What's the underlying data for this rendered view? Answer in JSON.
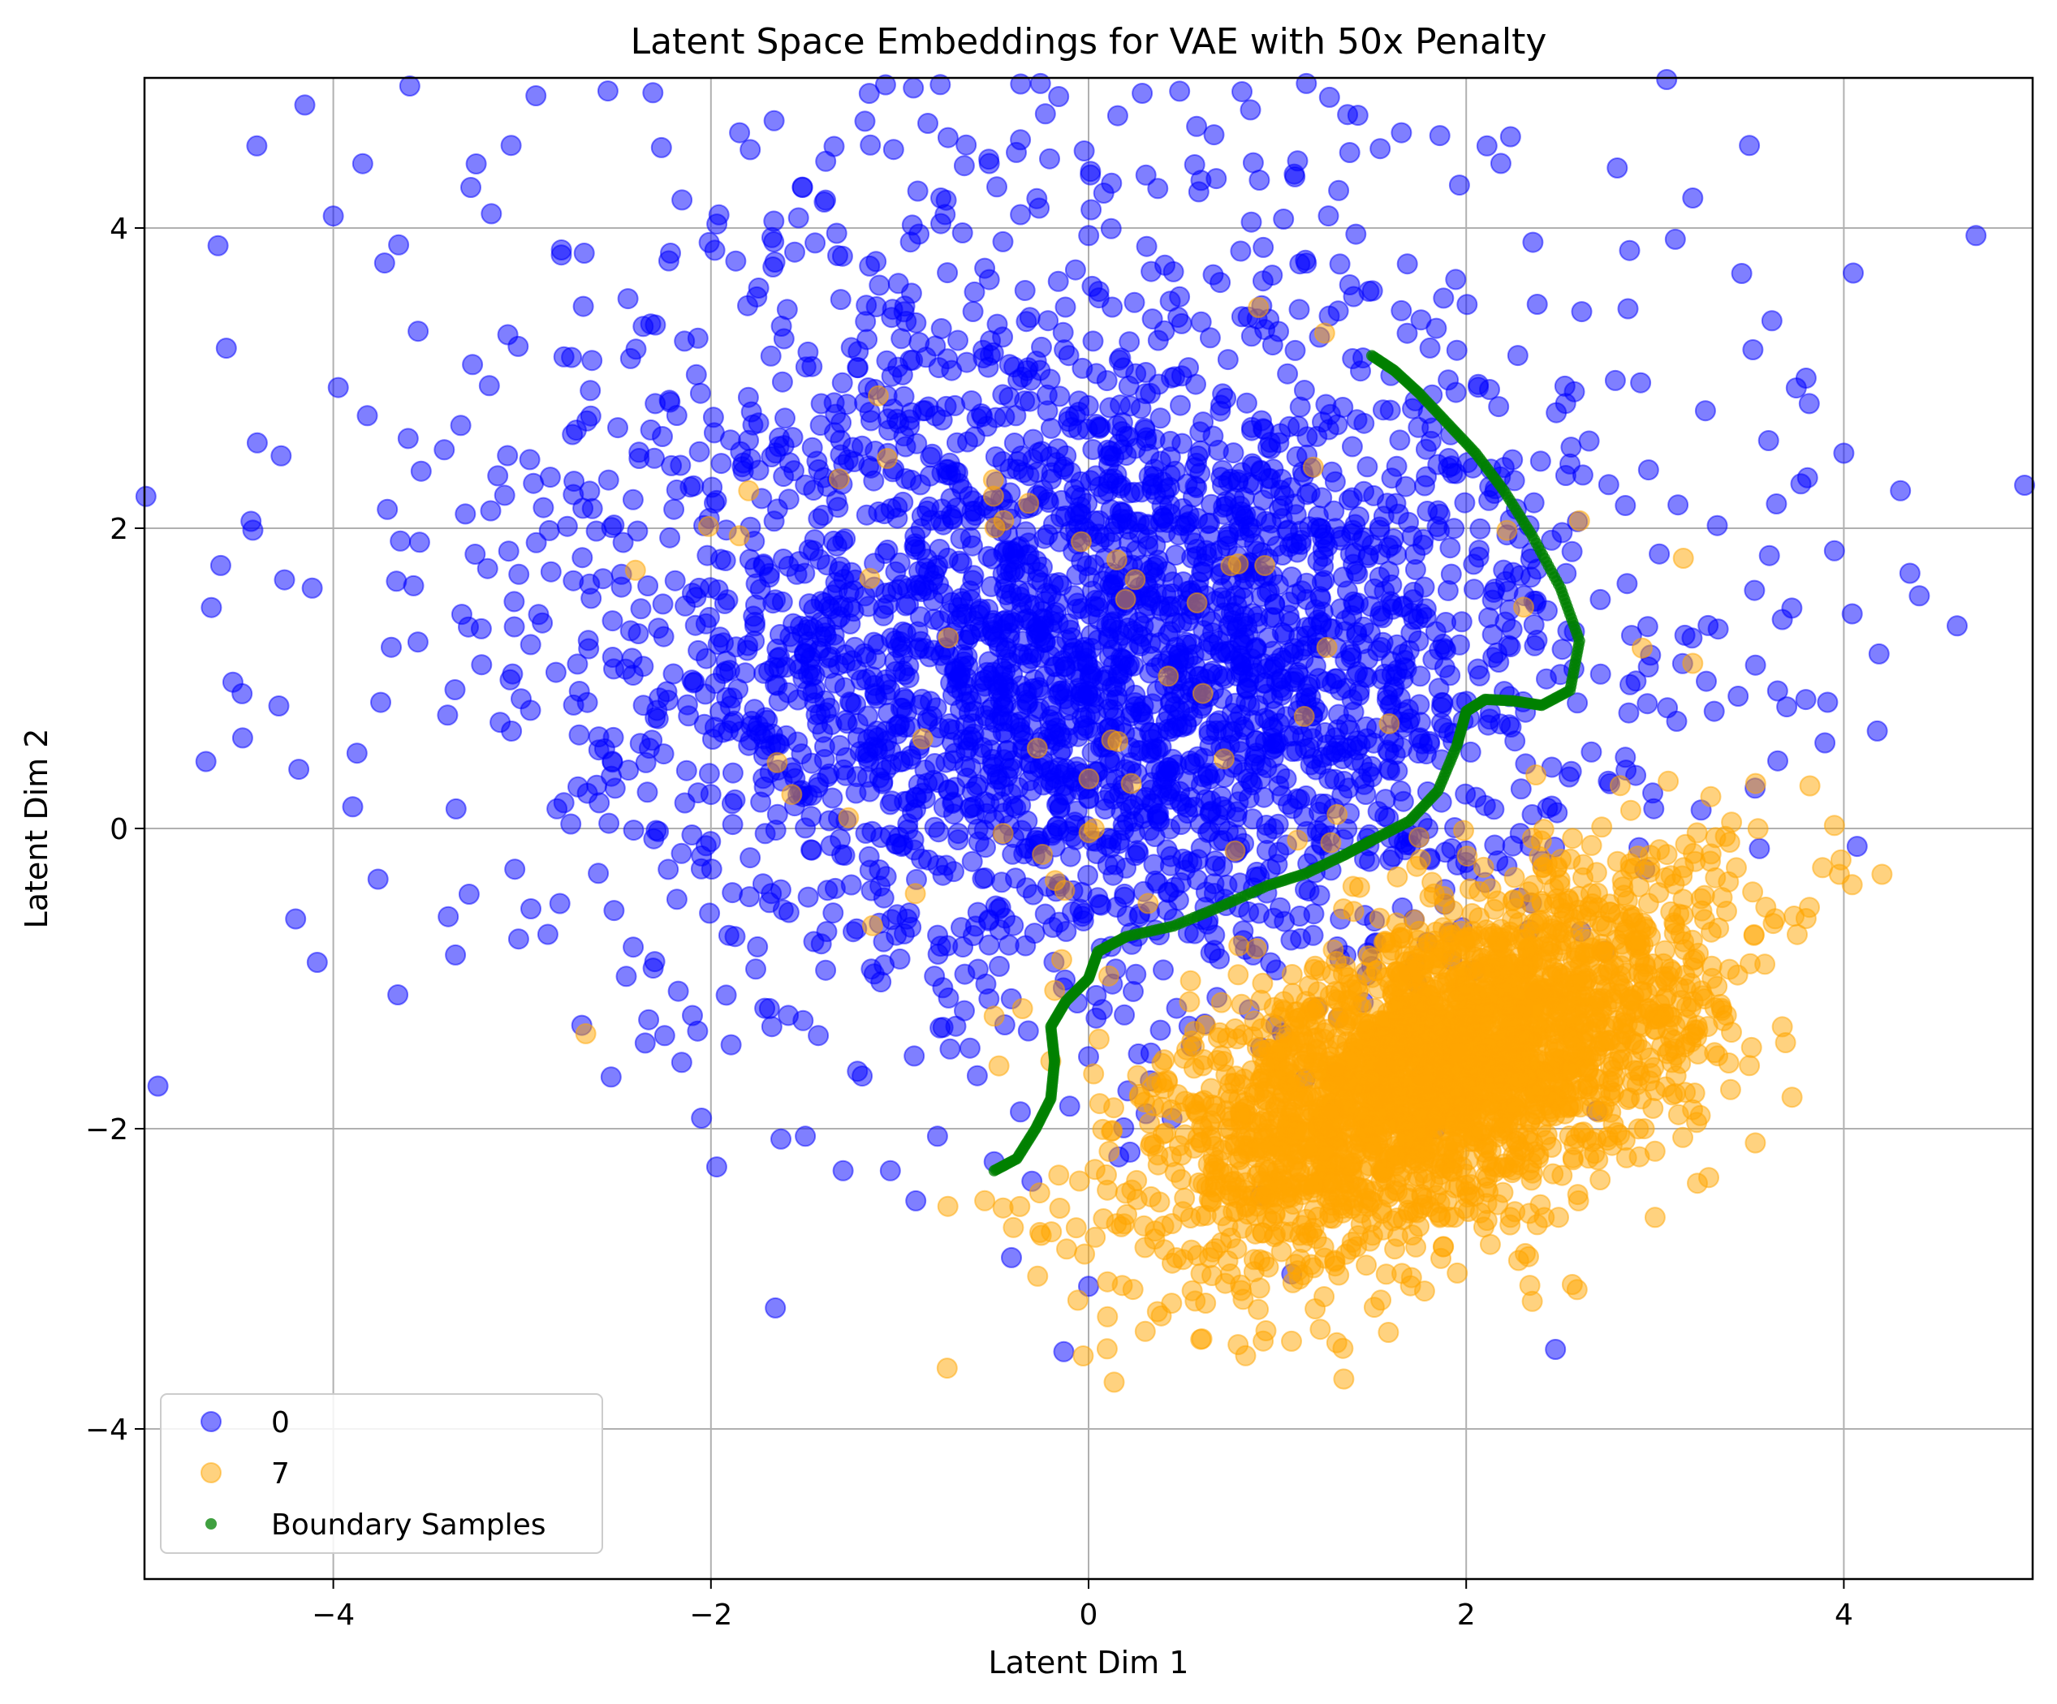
{
  "chart_data": {
    "type": "scatter",
    "title": "Latent Space Embeddings for VAE with 50x Penalty",
    "xlabel": "Latent Dim 1",
    "ylabel": "Latent Dim 2",
    "xlim": [
      -5,
      5
    ],
    "ylim": [
      -5,
      5
    ],
    "xticks": [
      -4,
      -2,
      0,
      2,
      4
    ],
    "yticks": [
      -4,
      -2,
      0,
      2,
      4
    ],
    "xtick_labels": [
      "−4",
      "−2",
      "0",
      "2",
      "4"
    ],
    "ytick_labels": [
      "−4",
      "−2",
      "0",
      "2",
      "4"
    ],
    "grid": true,
    "legend_position": "lower-left",
    "series": [
      {
        "name": "0",
        "color": "#0000ff",
        "marker": "circle",
        "alpha": 0.5,
        "clusters": [
          {
            "mean": [
              0.2,
              1.0
            ],
            "std": [
              1.2,
              1.0
            ],
            "corr": 0.0,
            "count": 2200
          },
          {
            "mean": [
              -0.5,
              2.0
            ],
            "std": [
              1.8,
              1.6
            ],
            "corr": 0.0,
            "count": 1100
          }
        ],
        "points": [
          [
            -4.0,
            4.08
          ],
          [
            -3.82,
            2.75
          ],
          [
            -3.35,
            0.13
          ],
          [
            -2.8,
            -0.5
          ],
          [
            -2.05,
            -1.93
          ],
          [
            -1.5,
            -2.05
          ],
          [
            -1.3,
            -2.28
          ],
          [
            -1.05,
            -2.28
          ],
          [
            -0.8,
            -2.05
          ],
          [
            -0.5,
            -2.22
          ],
          [
            -0.3,
            -2.35
          ],
          [
            0.0,
            -1.52
          ],
          [
            -0.1,
            -1.85
          ],
          [
            0.0,
            -3.05
          ],
          [
            4.7,
            3.95
          ],
          [
            4.6,
            1.35
          ],
          [
            4.35,
            1.7
          ],
          [
            4.05,
            3.7
          ],
          [
            4.0,
            2.5
          ],
          [
            3.95,
            1.85
          ],
          [
            3.9,
            0.57
          ],
          [
            3.5,
            4.55
          ],
          [
            3.2,
            4.2
          ],
          [
            2.8,
            4.4
          ],
          [
            3.8,
            3.0
          ],
          [
            4.3,
            2.25
          ],
          [
            4.4,
            1.55
          ],
          [
            3.65,
            0.45
          ]
        ]
      },
      {
        "name": "7",
        "color": "#ffa500",
        "marker": "circle",
        "alpha": 0.5,
        "clusters": [
          {
            "mean": [
              1.85,
              -1.6
            ],
            "std": [
              0.72,
              0.62
            ],
            "corr": 0.55,
            "count": 2700
          },
          {
            "mean": [
              0.2,
              0.8
            ],
            "std": [
              1.3,
              1.2
            ],
            "corr": 0.0,
            "count": 60
          }
        ],
        "points": [
          [
            -0.55,
            -2.48
          ],
          [
            0.1,
            -3.02
          ],
          [
            0.3,
            -3.35
          ],
          [
            0.6,
            -3.4
          ],
          [
            1.2,
            -3.2
          ],
          [
            2.35,
            -3.15
          ],
          [
            3.0,
            -2.15
          ],
          [
            3.5,
            -1.58
          ],
          [
            3.8,
            -0.6
          ],
          [
            3.95,
            0.02
          ],
          [
            3.15,
            1.8
          ],
          [
            3.2,
            1.1
          ],
          [
            2.6,
            2.05
          ],
          [
            1.25,
            3.3
          ],
          [
            0.9,
            3.47
          ],
          [
            -0.5,
            -1.25
          ],
          [
            -0.35,
            -1.2
          ],
          [
            -0.2,
            -1.55
          ],
          [
            -1.85,
            1.95
          ],
          [
            -2.4,
            1.72
          ],
          [
            -1.8,
            2.25
          ]
        ]
      },
      {
        "name": "Boundary Samples",
        "color": "#008000",
        "marker": "circle",
        "alpha": 0.75,
        "points": [
          [
            -0.5,
            -2.28
          ],
          [
            -0.38,
            -2.2
          ],
          [
            -0.28,
            -2.0
          ],
          [
            -0.2,
            -1.8
          ],
          [
            -0.18,
            -1.55
          ],
          [
            -0.2,
            -1.32
          ],
          [
            -0.12,
            -1.15
          ],
          [
            0.0,
            -1.0
          ],
          [
            0.05,
            -0.82
          ],
          [
            0.2,
            -0.72
          ],
          [
            0.45,
            -0.65
          ],
          [
            0.7,
            -0.52
          ],
          [
            0.95,
            -0.38
          ],
          [
            1.15,
            -0.3
          ],
          [
            1.35,
            -0.18
          ],
          [
            1.5,
            -0.08
          ],
          [
            1.7,
            0.05
          ],
          [
            1.85,
            0.25
          ],
          [
            1.95,
            0.55
          ],
          [
            2.0,
            0.78
          ],
          [
            2.1,
            0.86
          ],
          [
            2.25,
            0.85
          ],
          [
            2.4,
            0.82
          ],
          [
            2.55,
            0.92
          ],
          [
            2.6,
            1.25
          ],
          [
            2.5,
            1.6
          ],
          [
            2.35,
            1.95
          ],
          [
            2.2,
            2.25
          ],
          [
            2.05,
            2.5
          ],
          [
            1.9,
            2.7
          ],
          [
            1.75,
            2.9
          ],
          [
            1.62,
            3.05
          ],
          [
            1.5,
            3.15
          ]
        ]
      }
    ]
  }
}
